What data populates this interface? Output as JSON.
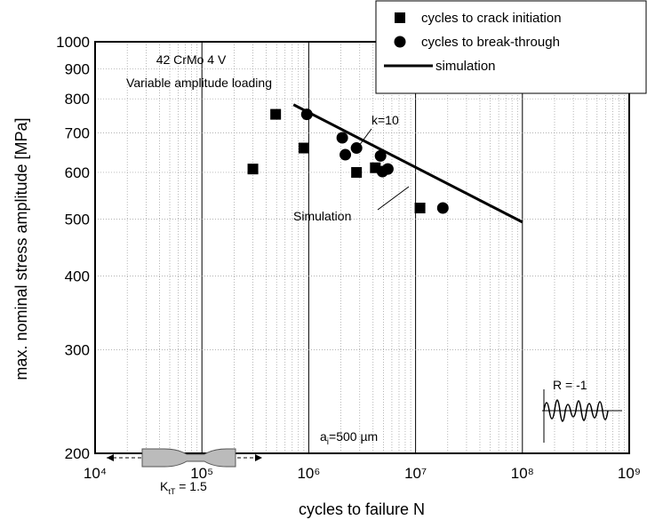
{
  "chart_data": {
    "type": "scatter",
    "xlabel": "cycles to failure N",
    "ylabel": "max. nominal stress amplitude [MPa]",
    "xlog": true,
    "ylog": true,
    "grid": true,
    "legend": "upper right",
    "xlim": [
      10000,
      1000000000
    ],
    "ylim": [
      200,
      1000
    ],
    "xticks": [
      {
        "value": 10000,
        "label": "10⁴"
      },
      {
        "value": 100000,
        "label": "10⁵"
      },
      {
        "value": 1000000,
        "label": "10⁶"
      },
      {
        "value": 10000000,
        "label": "10⁷"
      },
      {
        "value": 100000000,
        "label": "10⁸"
      },
      {
        "value": 1000000000,
        "label": "10⁹"
      }
    ],
    "yticks": [
      200,
      300,
      400,
      500,
      600,
      700,
      800,
      900,
      1000
    ],
    "series": [
      {
        "name": "cycles to crack initiation",
        "marker": "square",
        "color": "#000000",
        "x": [
          300000,
          490000,
          900000,
          2800000,
          4200000,
          11000000
        ],
        "values": [
          608,
          753,
          660,
          600,
          611,
          522
        ]
      },
      {
        "name": "cycles to break-through",
        "marker": "circle",
        "color": "#000000",
        "x": [
          960000,
          2060000,
          2200000,
          2800000,
          4700000,
          4900000,
          5500000,
          18000000
        ],
        "values": [
          753,
          687,
          643,
          660,
          640,
          602,
          608,
          522
        ]
      },
      {
        "name": "simulation",
        "marker": "line",
        "color": "#000000",
        "x": [
          720000,
          100000000
        ],
        "values": [
          782,
          494
        ]
      }
    ],
    "annotations": {
      "material": "42 CrMo 4 V",
      "loading": "Variable amplitude loading",
      "slope": "k=10",
      "simulation": "Simulation",
      "crack": [
        "a",
        "i",
        "=500 µm"
      ],
      "ratio": "R = -1",
      "notch": [
        "K",
        "tT",
        " = 1.5"
      ]
    }
  }
}
